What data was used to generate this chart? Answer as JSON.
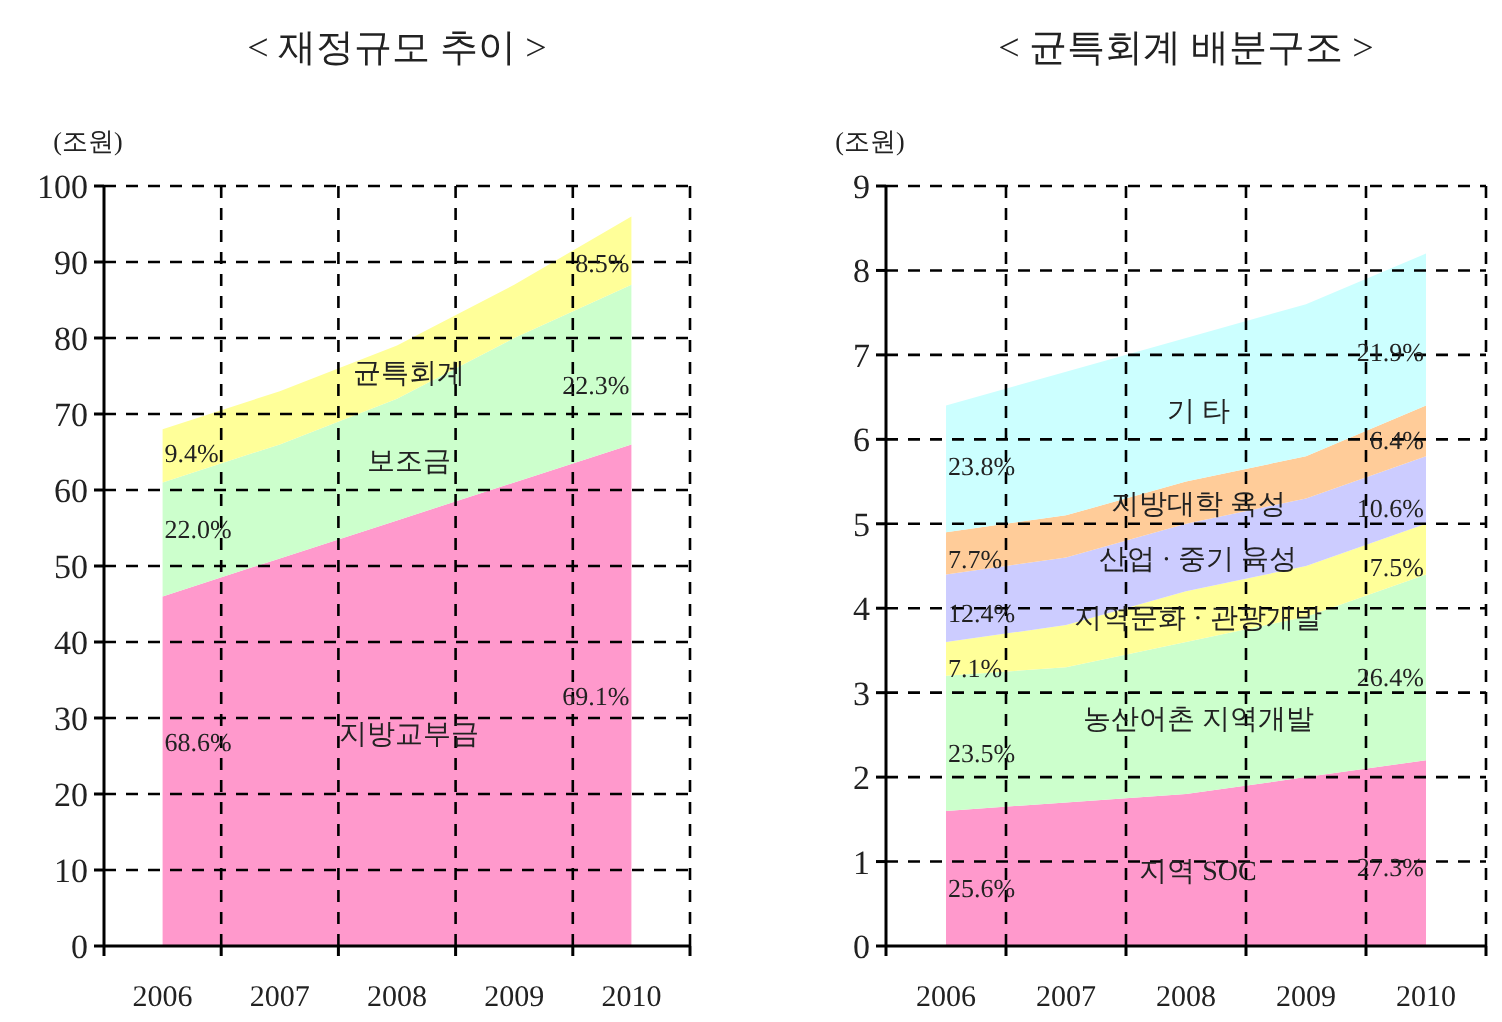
{
  "chart_data": [
    {
      "type": "area",
      "stacked": true,
      "title": "< 재정규모 추이 >",
      "ylabel": "(조원)",
      "categories": [
        "2006",
        "2007",
        "2008",
        "2009",
        "2010"
      ],
      "ylim": [
        0,
        100
      ],
      "yticks": [
        0,
        10,
        20,
        30,
        40,
        50,
        60,
        70,
        80,
        90,
        100
      ],
      "grid": true,
      "series": [
        {
          "name": "지방교부금",
          "color": "#ff99cc",
          "values": [
            46,
            51,
            56,
            61,
            66
          ]
        },
        {
          "name": "보조금",
          "color": "#ccffcc",
          "values": [
            15,
            15,
            16,
            19,
            21
          ]
        },
        {
          "name": "균특회계",
          "color": "#ffff99",
          "values": [
            7,
            7,
            7,
            7,
            9
          ]
        }
      ],
      "annotations": [
        {
          "text": "68.6%",
          "x": "2006",
          "y": 27
        },
        {
          "text": "69.1%",
          "x": "2010",
          "y": 33
        },
        {
          "text": "22.0%",
          "x": "2006",
          "y": 55
        },
        {
          "text": "22.3%",
          "x": "2010",
          "y": 74
        },
        {
          "text": "9.4%",
          "x": "2006",
          "y": 65
        },
        {
          "text": "8.5%",
          "x": "2010",
          "y": 90
        }
      ]
    },
    {
      "type": "area",
      "stacked": true,
      "title": "< 균특회계 배분구조 >",
      "ylabel": "(조원)",
      "categories": [
        "2006",
        "2007",
        "2008",
        "2009",
        "2010"
      ],
      "ylim": [
        0,
        9
      ],
      "yticks": [
        0,
        1,
        2,
        3,
        4,
        5,
        6,
        7,
        8,
        9
      ],
      "grid": true,
      "series": [
        {
          "name": "지역 SOC",
          "color": "#ff99cc",
          "values": [
            1.6,
            1.7,
            1.8,
            2.0,
            2.2
          ]
        },
        {
          "name": "농산어촌 지역개발",
          "color": "#ccffcc",
          "values": [
            1.6,
            1.6,
            1.8,
            1.9,
            2.2
          ]
        },
        {
          "name": "지역문화 · 관광개발",
          "color": "#ffff99",
          "values": [
            0.4,
            0.5,
            0.6,
            0.6,
            0.6
          ]
        },
        {
          "name": "산업 · 중기 육성",
          "color": "#ccccff",
          "values": [
            0.8,
            0.8,
            0.8,
            0.8,
            0.8
          ]
        },
        {
          "name": "지방대학 육성",
          "color": "#ffcc99",
          "values": [
            0.5,
            0.5,
            0.5,
            0.5,
            0.6
          ]
        },
        {
          "name": "기   타",
          "color": "#ccffff",
          "values": [
            1.5,
            1.7,
            1.7,
            1.8,
            1.8
          ]
        }
      ],
      "annotations": [
        {
          "text": "25.6%",
          "x": "2006",
          "y": 0.7
        },
        {
          "text": "27.3%",
          "x": "2010",
          "y": 0.95
        },
        {
          "text": "23.5%",
          "x": "2006",
          "y": 2.3
        },
        {
          "text": "26.4%",
          "x": "2010",
          "y": 3.2
        },
        {
          "text": "7.1%",
          "x": "2006",
          "y": 3.3
        },
        {
          "text": "7.5%",
          "x": "2010",
          "y": 4.5
        },
        {
          "text": "12.4%",
          "x": "2006",
          "y": 3.95
        },
        {
          "text": "10.6%",
          "x": "2010",
          "y": 5.2
        },
        {
          "text": "7.7%",
          "x": "2006",
          "y": 4.6
        },
        {
          "text": "6.4%",
          "x": "2010",
          "y": 6.0
        },
        {
          "text": "23.8%",
          "x": "2006",
          "y": 5.7
        },
        {
          "text": "21.9%",
          "x": "2010",
          "y": 7.05
        }
      ]
    }
  ]
}
